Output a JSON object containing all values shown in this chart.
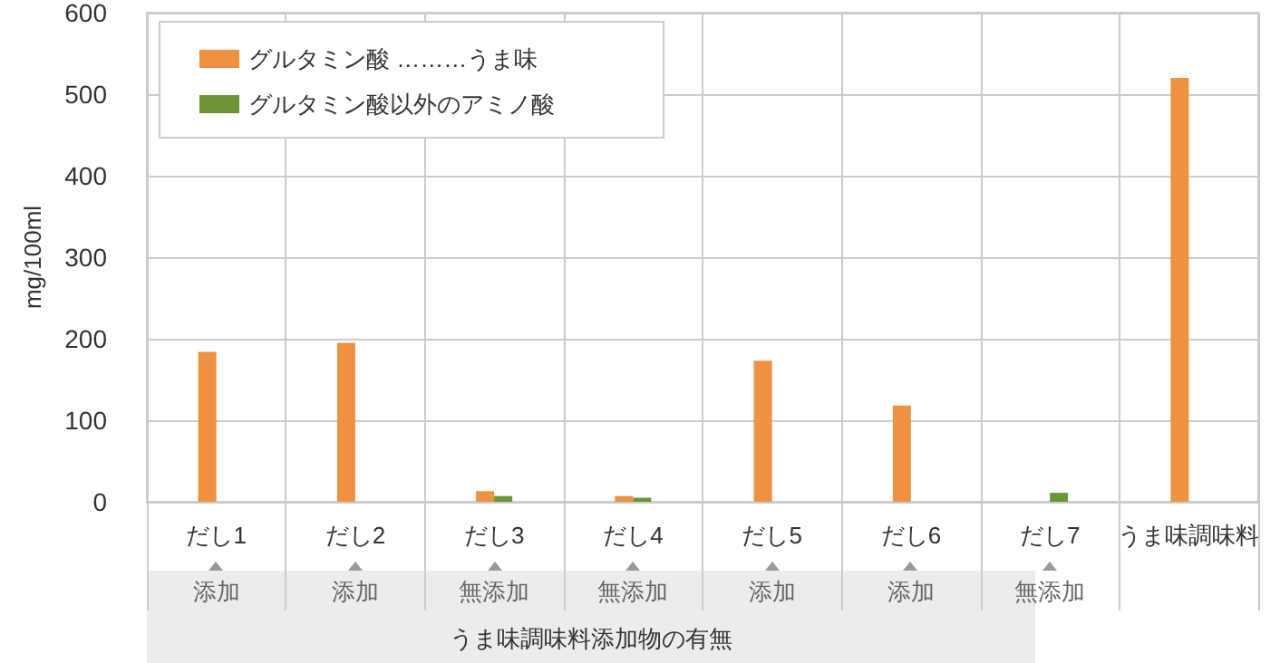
{
  "chart_data": {
    "type": "bar",
    "ylabel": "mg/100ml",
    "categories": [
      "だし1",
      "だし2",
      "だし3",
      "だし4",
      "だし5",
      "だし6",
      "だし7",
      "うま味調味料"
    ],
    "series": [
      {
        "name": "グルタミン酸 ………うま味",
        "color": "#ee9140",
        "values": [
          184,
          195,
          13,
          7,
          173,
          118,
          0,
          520
        ]
      },
      {
        "name": "グルタミン酸以外のアミノ酸",
        "color": "#6e9438",
        "values": [
          0,
          0,
          7,
          5,
          0,
          0,
          11,
          0
        ]
      }
    ],
    "ylim": [
      0,
      600
    ],
    "yticks": [
      0,
      100,
      200,
      300,
      400,
      500,
      600
    ],
    "grid": true,
    "legend": "top left",
    "annotations": [
      "添加",
      "添加",
      "無添加",
      "無添加",
      "添加",
      "添加",
      "無添加",
      "うま味調味料添加物の有無"
    ]
  }
}
